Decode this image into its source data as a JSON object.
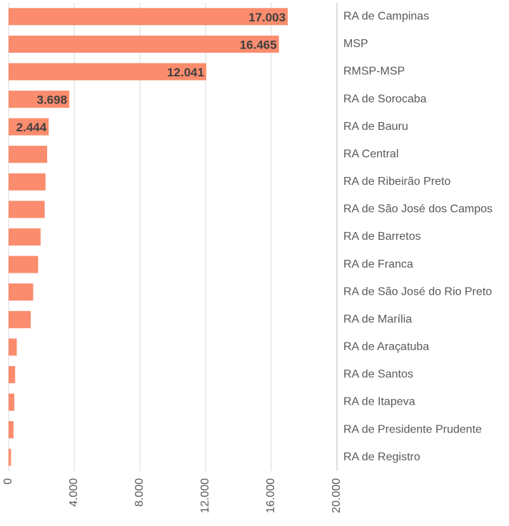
{
  "chart_data": {
    "type": "barh",
    "categories": [
      "RA de Campinas",
      "MSP",
      "RMSP-MSP",
      "RA de Sorocaba",
      "RA de Bauru",
      "RA Central",
      "RA de Ribeirão Preto",
      "RA de São José dos Campos",
      "RA de Barretos",
      "RA de Franca",
      "RA de São José do Rio Preto",
      "RA de Marília",
      "RA de Araçatuba",
      "RA de Santos",
      "RA de Itapeva",
      "RA de Presidente Prudente",
      "RA de Registro"
    ],
    "values": [
      17003,
      16465,
      12041,
      3698,
      2444,
      2350,
      2250,
      2200,
      1950,
      1800,
      1500,
      1350,
      500,
      400,
      350,
      300,
      150
    ],
    "value_labels": [
      "17.003",
      "16.465",
      "12.041",
      "3.698",
      "2.444",
      null,
      null,
      null,
      null,
      null,
      null,
      null,
      null,
      null,
      null,
      null,
      null
    ],
    "color": "#fb8c6d",
    "xlim": [
      0,
      20000
    ],
    "xticks": [
      0,
      {
        "value": 4000,
        "label": "4.000"
      },
      {
        "value": 8000,
        "label": "8.000"
      },
      {
        "value": 12000,
        "label": "12.000"
      },
      {
        "value": 16000,
        "label": "16.000"
      },
      {
        "value": 20000,
        "label": "20.000"
      }
    ],
    "grid": true
  }
}
